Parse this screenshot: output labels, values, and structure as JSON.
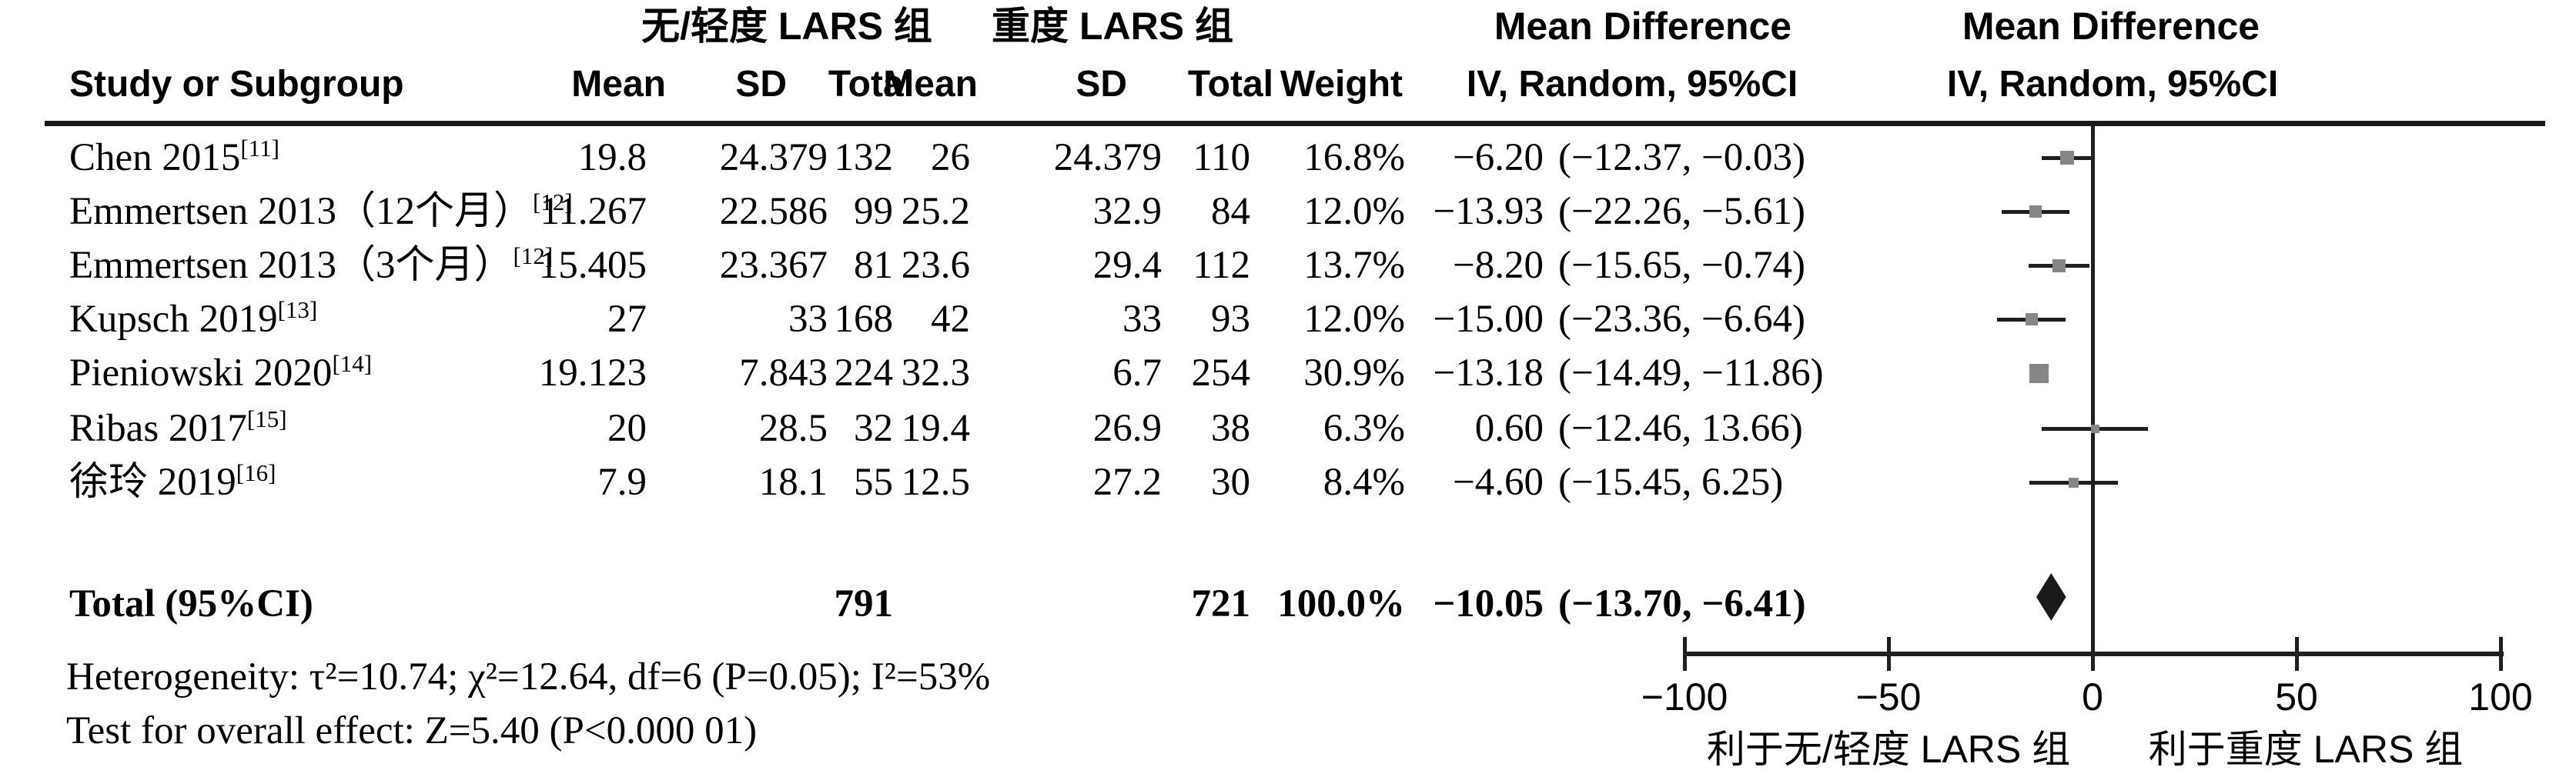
{
  "header": {
    "group1": "无/轻度 LARS 组",
    "group2": "重度 LARS 组",
    "study_col": "Study or Subgroup",
    "mean": "Mean",
    "sd": "SD",
    "total": "Total",
    "weight": "Weight",
    "md_title": "Mean Difference",
    "md_subtitle": "IV, Random, 95%CI"
  },
  "studies": [
    {
      "name": "Chen 2015",
      "ref": "[11]",
      "mean1": "19.8",
      "sd1": "24.379",
      "total1": "132",
      "mean2": "26",
      "sd2": "24.379",
      "total2": "110",
      "weight": "16.8%",
      "md": "−6.20",
      "ci": "(−12.37, −0.03)"
    },
    {
      "name": "Emmertsen 2013（12个月）",
      "ref": "[12]",
      "mean1": "11.267",
      "sd1": "22.586",
      "total1": "99",
      "mean2": "25.2",
      "sd2": "32.9",
      "total2": "84",
      "weight": "12.0%",
      "md": "−13.93",
      "ci": "(−22.26, −5.61)"
    },
    {
      "name": "Emmertsen 2013（3个月）",
      "ref": "[12]",
      "mean1": "15.405",
      "sd1": "23.367",
      "total1": "81",
      "mean2": "23.6",
      "sd2": "29.4",
      "total2": "112",
      "weight": "13.7%",
      "md": "−8.20",
      "ci": "(−15.65, −0.74)"
    },
    {
      "name": "Kupsch 2019",
      "ref": "[13]",
      "mean1": "27",
      "sd1": "33",
      "total1": "168",
      "mean2": "42",
      "sd2": "33",
      "total2": "93",
      "weight": "12.0%",
      "md": "−15.00",
      "ci": "(−23.36, −6.64)"
    },
    {
      "name": "Pieniowski 2020",
      "ref": "[14]",
      "mean1": "19.123",
      "sd1": "7.843",
      "total1": "224",
      "mean2": "32.3",
      "sd2": "6.7",
      "total2": "254",
      "weight": "30.9%",
      "md": "−13.18",
      "ci": "(−14.49, −11.86)"
    },
    {
      "name": "Ribas 2017",
      "ref": "[15]",
      "mean1": "20",
      "sd1": "28.5",
      "total1": "32",
      "mean2": "19.4",
      "sd2": "26.9",
      "total2": "38",
      "weight": "6.3%",
      "md": "0.60",
      "ci": "(−12.46, 13.66)"
    },
    {
      "name": "徐玲 2019",
      "ref": "[16]",
      "mean1": "7.9",
      "sd1": "18.1",
      "total1": "55",
      "mean2": "12.5",
      "sd2": "27.2",
      "total2": "30",
      "weight": "8.4%",
      "md": "−4.60",
      "ci": "(−15.45, 6.25)"
    }
  ],
  "total_row": {
    "label": "Total (95%CI)",
    "total1": "791",
    "total2": "721",
    "weight": "100.0%",
    "md": "−10.05",
    "ci": "(−13.70, −6.41)"
  },
  "footnotes": {
    "heterogeneity": "Heterogeneity: τ²=10.74; χ²=12.64, df=6 (P=0.05); I²=53%",
    "overall_effect": "Test for overall effect: Z=5.40 (P<0.000 01)"
  },
  "axis": {
    "tick_labels": [
      "−100",
      "−50",
      "0",
      "50",
      "100"
    ],
    "left_label": "利于无/轻度 LARS 组",
    "right_label": "利于重度 LARS 组"
  },
  "chart_data": {
    "type": "forest",
    "effect_measure": "Mean Difference, IV, Random, 95%CI",
    "x_axis": {
      "min": -100,
      "max": 100,
      "ticks": [
        -100,
        -50,
        0,
        50,
        100
      ]
    },
    "studies": [
      {
        "label": "Chen 2015",
        "est": -6.2,
        "lo": -12.37,
        "hi": -0.03,
        "weight_pct": 16.8
      },
      {
        "label": "Emmertsen 2013（12个月）",
        "est": -13.93,
        "lo": -22.26,
        "hi": -5.61,
        "weight_pct": 12.0
      },
      {
        "label": "Emmertsen 2013（3个月）",
        "est": -8.2,
        "lo": -15.65,
        "hi": -0.74,
        "weight_pct": 13.7
      },
      {
        "label": "Kupsch 2019",
        "est": -15.0,
        "lo": -23.36,
        "hi": -6.64,
        "weight_pct": 12.0
      },
      {
        "label": "Pieniowski 2020",
        "est": -13.18,
        "lo": -14.49,
        "hi": -11.86,
        "weight_pct": 30.9
      },
      {
        "label": "Ribas 2017",
        "est": 0.6,
        "lo": -12.46,
        "hi": 13.66,
        "weight_pct": 6.3
      },
      {
        "label": "徐玲 2019",
        "est": -4.6,
        "lo": -15.45,
        "hi": 6.25,
        "weight_pct": 8.4
      }
    ],
    "total": {
      "label": "Total (95%CI)",
      "est": -10.05,
      "lo": -13.7,
      "hi": -6.41,
      "weight_pct": 100.0
    },
    "favors_left": "利于无/轻度 LARS 组",
    "favors_right": "利于重度 LARS 组",
    "heterogeneity": {
      "tau2": 10.74,
      "chi2": 12.64,
      "df": 6,
      "P": 0.05,
      "I2_pct": 53
    },
    "overall_effect": {
      "Z": 5.4,
      "P": "<0.000 01"
    }
  }
}
